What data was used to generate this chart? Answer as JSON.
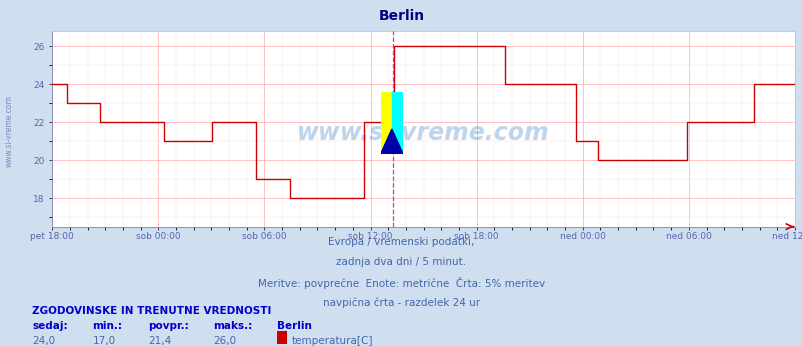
{
  "title": "Berlin",
  "title_color": "#000080",
  "title_fontsize": 10,
  "bg_color": "#d0dff0",
  "plot_bg_color": "#ffffff",
  "line_color": "#cc0000",
  "grid_color_major": "#ffaaaa",
  "grid_color_minor": "#ffdddd",
  "ylabel_color": "#5566aa",
  "xlabel_color": "#5566aa",
  "ylim": [
    16.5,
    26.8
  ],
  "yticks": [
    18,
    20,
    22,
    24,
    26
  ],
  "x_tick_labels": [
    "pet 18:00",
    "sob 00:00",
    "sob 06:00",
    "sob 12:00",
    "sob 18:00",
    "ned 00:00",
    "ned 06:00",
    "ned 12:00"
  ],
  "vline_color": "#bb44bb",
  "vline_style": "--",
  "vline_pos": 0.4583,
  "footer_lines": [
    "Evropa / vremenski podatki,",
    "zadnja dva dni / 5 minut.",
    "Meritve: povprečne  Enote: metrične  Črta: 5% meritev",
    "navpična črta - razdelek 24 ur"
  ],
  "footer_color": "#4466aa",
  "footer_fontsize": 7.5,
  "stats_label": "ZGODOVINSKE IN TRENUTNE VREDNOSTI",
  "stats_label_color": "#0000cc",
  "stats_label_fontsize": 7.5,
  "stats_headers": [
    "sedaj:",
    "min.:",
    "povpr.:",
    "maks.:",
    "Berlin"
  ],
  "stats_values": [
    "24,0",
    "17,0",
    "21,4",
    "26,0",
    "temperatura[C]"
  ],
  "stats_color": "#4466aa",
  "stats_fontsize": 7.5,
  "watermark_text": "www.si-vreme.com",
  "watermark_color": "#4488cc",
  "watermark_alpha": 0.35,
  "watermark_fontsize": 17,
  "legend_box_color": "#cc0000",
  "t": [
    0.0,
    0.01,
    0.02,
    0.03,
    0.04,
    0.055,
    0.065,
    0.08,
    0.095,
    0.11,
    0.13,
    0.15,
    0.165,
    0.18,
    0.2,
    0.215,
    0.23,
    0.245,
    0.26,
    0.275,
    0.29,
    0.305,
    0.32,
    0.34,
    0.355,
    0.365,
    0.375,
    0.39,
    0.405,
    0.42,
    0.435,
    0.45,
    0.46,
    0.47,
    0.48,
    0.49,
    0.5,
    0.51,
    0.525,
    0.54,
    0.555,
    0.575,
    0.59,
    0.61,
    0.625,
    0.64,
    0.66,
    0.675,
    0.69,
    0.705,
    0.72,
    0.735,
    0.75,
    0.765,
    0.78,
    0.795,
    0.81,
    0.825,
    0.84,
    0.855,
    0.87,
    0.885,
    0.9,
    0.915,
    0.93,
    0.945,
    0.96,
    0.975,
    0.99,
    1.0
  ],
  "temp": [
    24,
    24,
    23,
    23,
    23,
    23,
    22,
    22,
    22,
    22,
    22,
    21,
    21,
    21,
    21,
    22,
    22,
    22,
    22,
    19,
    19,
    19,
    18,
    18,
    18,
    18,
    18,
    18,
    18,
    22,
    22,
    22,
    26,
    26,
    26,
    26,
    26,
    26,
    26,
    26,
    26,
    26,
    26,
    24,
    24,
    24,
    24,
    24,
    24,
    21,
    21,
    20,
    20,
    20,
    20,
    20,
    20,
    20,
    20,
    22,
    22,
    22,
    22,
    22,
    22,
    24,
    24,
    24,
    24,
    24
  ]
}
